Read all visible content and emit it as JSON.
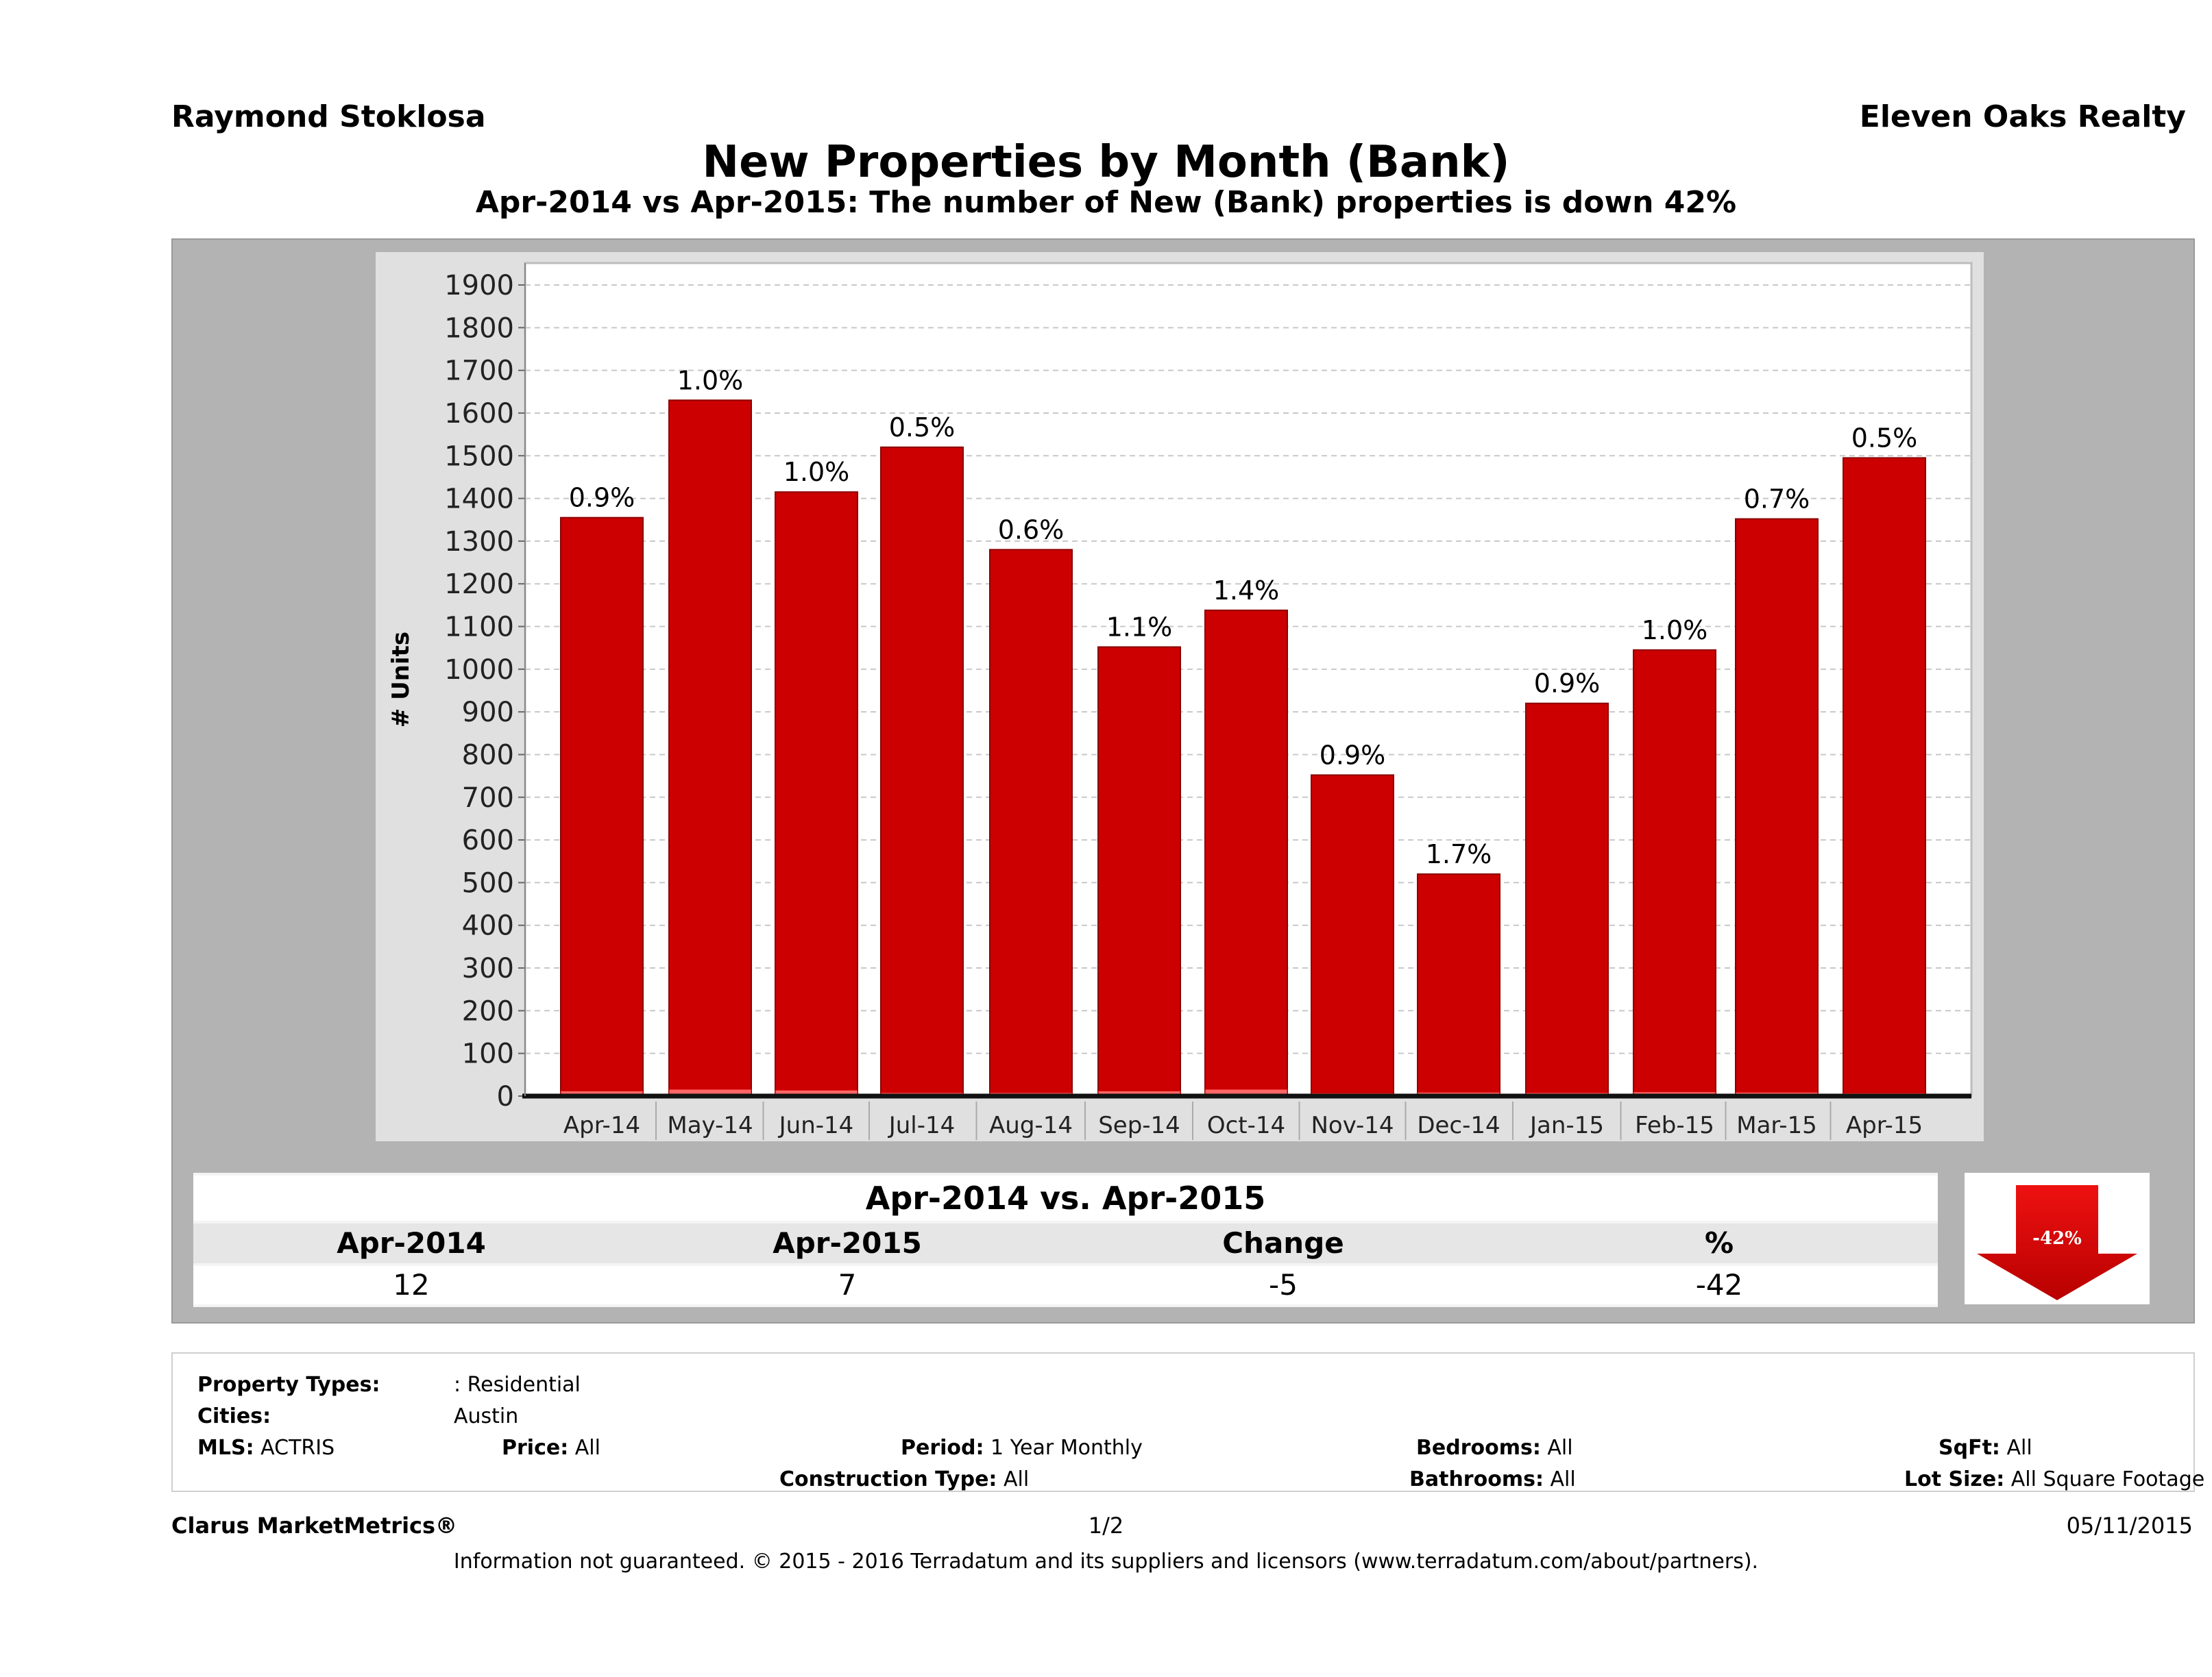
{
  "header": {
    "agent": "Raymond Stoklosa",
    "brokerage": "Eleven Oaks Realty",
    "title": "New Properties by Month (Bank)",
    "subtitle": "Apr-2014 vs Apr-2015: The number of New (Bank)  properties is down 42%"
  },
  "chart_data": {
    "type": "bar",
    "title": "New Properties by Month (Bank)",
    "ylabel": "# Units",
    "xlabel": "",
    "ylim": [
      0,
      1900
    ],
    "yticks": [
      0,
      100,
      200,
      300,
      400,
      500,
      600,
      700,
      800,
      900,
      1000,
      1100,
      1200,
      1300,
      1400,
      1500,
      1600,
      1700,
      1800,
      1900
    ],
    "grid": true,
    "categories": [
      "Apr-14",
      "May-14",
      "Jun-14",
      "Jul-14",
      "Aug-14",
      "Sep-14",
      "Oct-14",
      "Nov-14",
      "Dec-14",
      "Jan-15",
      "Feb-15",
      "Mar-15",
      "Apr-15"
    ],
    "series": [
      {
        "values": [
          1355,
          1630,
          1415,
          1520,
          1280,
          1052,
          1138,
          752,
          520,
          920,
          1045,
          1352,
          1495
        ],
        "color": "#cc0000"
      },
      {
        "values": [
          12,
          16,
          14,
          8,
          8,
          12,
          16,
          7,
          9,
          8,
          10,
          9,
          7
        ],
        "color": "#ff6666"
      }
    ],
    "data_labels": [
      "0.9%",
      "1.0%",
      "1.0%",
      "0.5%",
      "0.6%",
      "1.1%",
      "1.4%",
      "0.9%",
      "1.7%",
      "0.9%",
      "1.0%",
      "0.7%",
      "0.5%"
    ]
  },
  "comparison": {
    "title": "Apr-2014 vs. Apr-2015",
    "headers": [
      "Apr-2014",
      "Apr-2015",
      "Change",
      "%"
    ],
    "values": [
      "12",
      "7",
      "-5",
      "-42"
    ],
    "arrow_label": "-42%",
    "arrow_color": "#cc0000"
  },
  "criteria": {
    "property_types_label": "Property Types:",
    "property_types_value": ": Residential",
    "cities_label": "Cities:",
    "cities_value": "Austin",
    "mls_label": "MLS:",
    "mls_value": "ACTRIS",
    "price_label": "Price:",
    "price_value": "All",
    "period_label": "Period:",
    "period_value": "1 Year Monthly",
    "construction_label": "Construction Type:",
    "construction_value": "All",
    "bedrooms_label": "Bedrooms:",
    "bedrooms_value": "All",
    "bathrooms_label": "Bathrooms:",
    "bathrooms_value": "All",
    "sqft_label": "SqFt:",
    "sqft_value": "All",
    "lotsize_label": "Lot Size:",
    "lotsize_value": "All Square Footage"
  },
  "footer": {
    "brand": "Clarus MarketMetrics®",
    "page": "1/2",
    "date": "05/11/2015",
    "disclaimer": "Information not guaranteed. © 2015 - 2016 Terradatum and its suppliers and licensors (www.terradatum.com/about/partners)."
  }
}
